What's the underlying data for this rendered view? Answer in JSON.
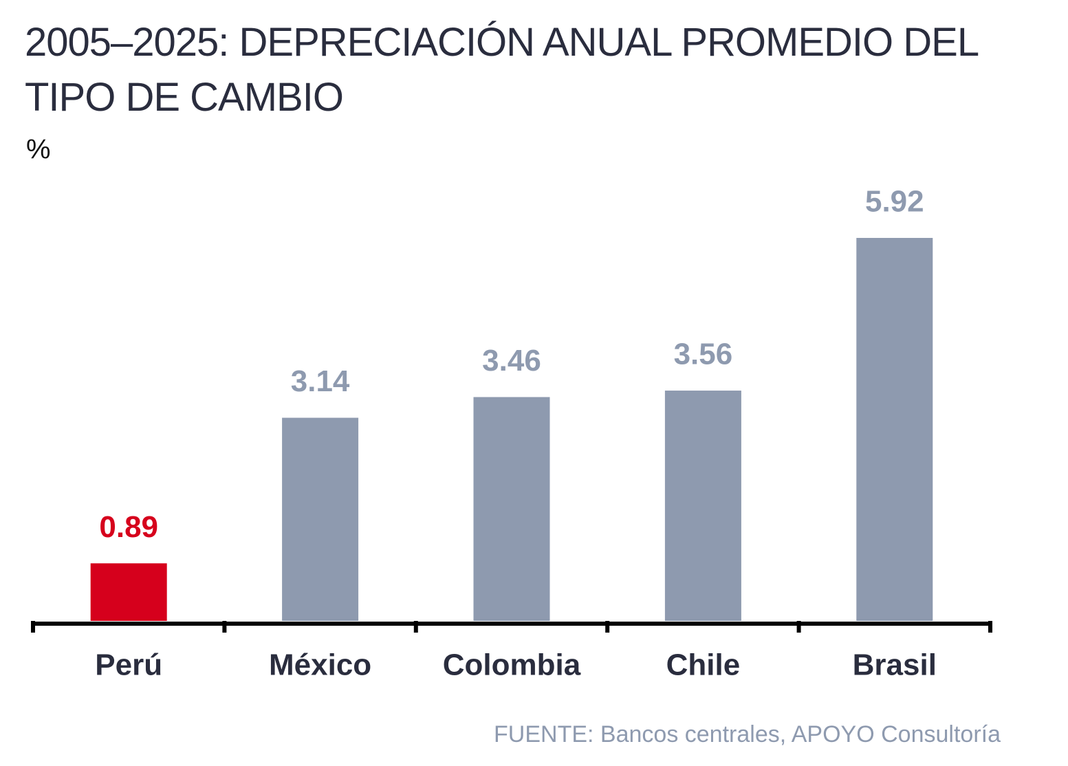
{
  "chart_data": {
    "type": "bar",
    "title": "2005–2025: DEPRECIACIÓN ANUAL PROMEDIO DEL TIPO DE CAMBIO",
    "unit_label": "%",
    "categories": [
      "Perú",
      "México",
      "Colombia",
      "Chile",
      "Brasil"
    ],
    "values": [
      0.89,
      3.14,
      3.46,
      3.56,
      5.92
    ],
    "colors": [
      "#d6001c",
      "#8e9aaf",
      "#8e9aaf",
      "#8e9aaf",
      "#8e9aaf"
    ],
    "source": "FUENTE: Bancos centrales, APOYO Consultoría"
  }
}
